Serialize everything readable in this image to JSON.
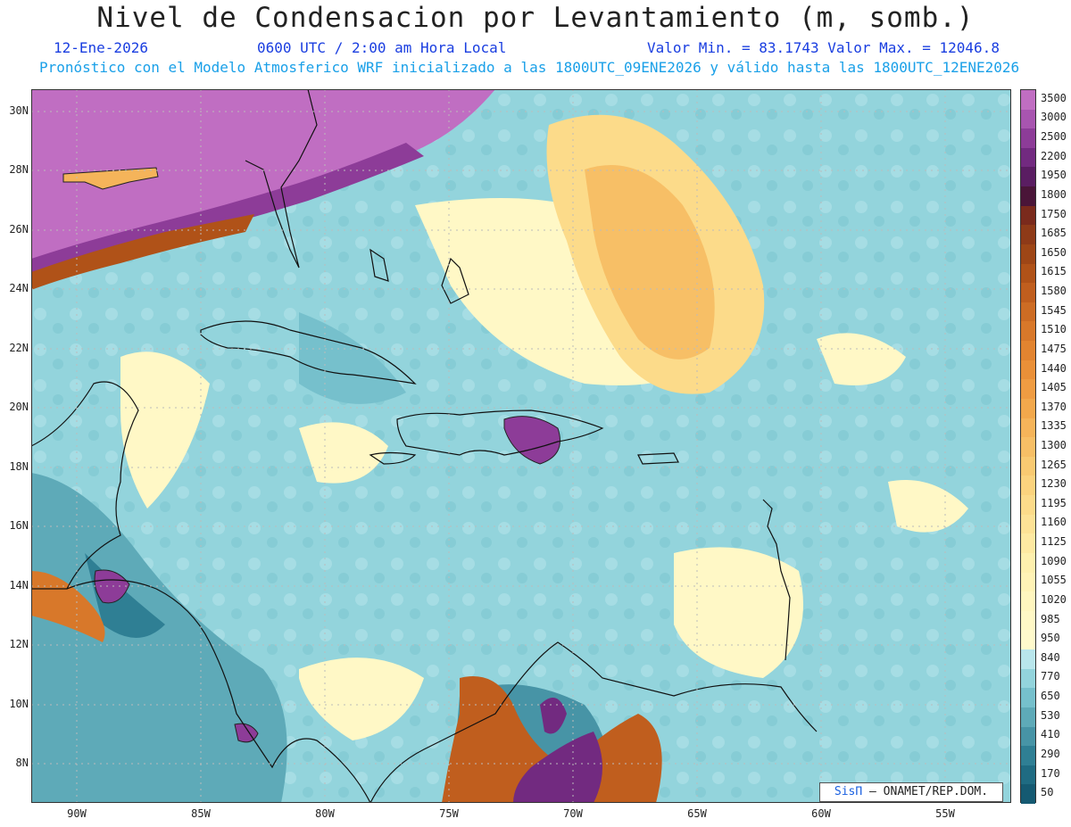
{
  "header": {
    "title": "Nivel de Condensacion por Levantamiento (m, somb.)",
    "date": "12-Ene-2026",
    "time": "0600 UTC / 2:00 am Hora Local",
    "minmax": "Valor Min. = 83.1743  Valor Max. = 12046.8",
    "forecast": "Pronóstico con el Modelo Atmosferico WRF inicializado a las 1800UTC_09ENE2026 y válido hasta las  1800UTC_12ENE2026"
  },
  "axes": {
    "lat_labels": [
      "30N",
      "28N",
      "26N",
      "24N",
      "22N",
      "20N",
      "18N",
      "16N",
      "14N",
      "12N",
      "10N",
      "8N"
    ],
    "lon_labels": [
      "90W",
      "85W",
      "80W",
      "75W",
      "70W",
      "65W",
      "60W",
      "55W"
    ]
  },
  "colorbar": {
    "labels": [
      "3500",
      "3000",
      "2500",
      "2200",
      "1950",
      "1800",
      "1750",
      "1685",
      "1650",
      "1615",
      "1580",
      "1545",
      "1510",
      "1475",
      "1440",
      "1405",
      "1370",
      "1335",
      "1300",
      "1265",
      "1230",
      "1195",
      "1160",
      "1125",
      "1090",
      "1055",
      "1020",
      "985",
      "950",
      "840",
      "770",
      "650",
      "530",
      "410",
      "290",
      "170",
      "50"
    ],
    "colors": [
      "#c06ec2",
      "#a855b0",
      "#8d3c98",
      "#722a80",
      "#5a1d62",
      "#4a1538",
      "#7a2a1c",
      "#8e3a18",
      "#9e4616",
      "#b05218",
      "#c05e1e",
      "#cd6c24",
      "#d8782a",
      "#e28430",
      "#ea9038",
      "#ef9c42",
      "#f2a84c",
      "#f5b45a",
      "#f7bf66",
      "#f9ca72",
      "#fbd37e",
      "#fcdb8a",
      "#fde296",
      "#fee9a2",
      "#fef0ae",
      "#fff3b6",
      "#fff6bf",
      "#fff8c6",
      "#fffacc",
      "#b9e6ec",
      "#93d4dc",
      "#76c0cc",
      "#5eaab8",
      "#4794a6",
      "#2f7f94",
      "#1f6b82",
      "#155a72"
    ],
    "colors_note": ""
  },
  "credit": {
    "sis": "SisΠ",
    "text": " – ONAMET/REP.DOM."
  }
}
